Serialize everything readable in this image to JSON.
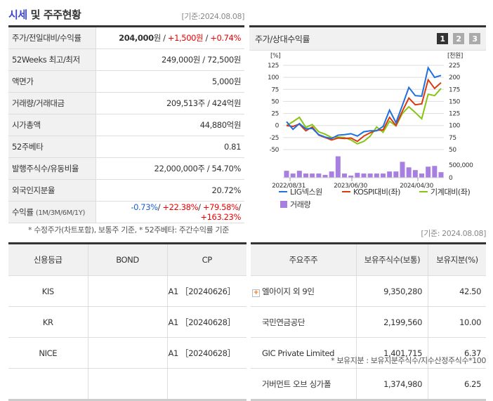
{
  "header": {
    "title_highlight": "시세",
    "title_rest": " 및 주주현황",
    "date": "[기준:2024.08.08]"
  },
  "summary": [
    {
      "label": "주가/전일대비/수익률",
      "price": "204,000",
      "unit": "원",
      "change": "+1,500원",
      "rate": "+0.74%"
    },
    {
      "label": "52Weeks 최고/최저",
      "value": "249,000원 / 72,500원"
    },
    {
      "label": "액면가",
      "value": "5,000원"
    },
    {
      "label": "거래량/거래대금",
      "value": "209,513주 / 424억원"
    },
    {
      "label": "시가총액",
      "value": "44,880억원"
    },
    {
      "label": "52주베타",
      "value": "0.81"
    },
    {
      "label": "발행주식수/유동비율",
      "value": "22,000,000주 / 54.70%"
    },
    {
      "label": "외국인지분율",
      "value": "20.72%"
    },
    {
      "label": "수익률",
      "sub": "(1M/3M/6M/1Y)",
      "r1": "-0.73%",
      "r2": "+22.38%",
      "r3": "+79.58%",
      "r4": "+163.23%"
    }
  ],
  "summary_note": "* 수정주가(차트포함), 보통주 기준, * 52주베타: 주간수익률 기준",
  "chart_panel": {
    "title": "주가/상대수익률",
    "pages": [
      "1",
      "2",
      "3"
    ]
  },
  "chart_data": {
    "type": "line",
    "left_unit": "[%]",
    "right_unit": "[천원]",
    "left_ticks": [
      125,
      100,
      75,
      50,
      25,
      0,
      -25,
      -50
    ],
    "right_ticks": [
      225,
      200,
      175,
      150,
      125,
      100,
      75,
      50
    ],
    "ylim": [
      -50,
      125
    ],
    "volume_tick": "500,000",
    "volume_zero": "0",
    "x_labels": [
      "2022/08/31",
      "2023/06/30",
      "2024/04/30"
    ],
    "series": [
      {
        "name": "LIG넥스원",
        "color": "#1f6fdf",
        "values": [
          8,
          -8,
          4,
          -7,
          -6,
          -19,
          -24,
          -27,
          -20,
          -19,
          -17,
          -22,
          -13,
          -11,
          -11,
          -2,
          32,
          6,
          42,
          79,
          62,
          61,
          120,
          100,
          104
        ]
      },
      {
        "name": "KOSPI대비(좌)",
        "color": "#d83a10",
        "values": [
          0,
          -2,
          3,
          -11,
          -3,
          -20,
          -25,
          -30,
          -26,
          -27,
          -26,
          -33,
          -22,
          -15,
          -10,
          -9,
          17,
          0,
          30,
          57,
          43,
          45,
          95,
          77,
          89
        ]
      },
      {
        "name": "기계대비(좌)",
        "color": "#88c414",
        "values": [
          0,
          8,
          17,
          -4,
          2,
          -13,
          -18,
          -25,
          -24,
          -25,
          -30,
          -38,
          -33,
          -22,
          -3,
          -14,
          9,
          -1,
          25,
          39,
          27,
          14,
          65,
          62,
          77
        ]
      }
    ],
    "volume": {
      "name": "거래량",
      "color": "#a77fe0",
      "values": [
        273000,
        164000,
        273000,
        164000,
        164000,
        164000,
        109000,
        245000,
        845000,
        164000,
        82000,
        191000,
        164000,
        164000,
        164000,
        164000,
        245000,
        245000,
        627000,
        409000,
        300000,
        164000,
        436000,
        464000,
        218000
      ]
    }
  },
  "credit": {
    "headers": [
      "신용등급",
      "BOND",
      "CP"
    ],
    "rows": [
      [
        "KIS",
        "",
        "A1 ［20240626］"
      ],
      [
        "KR",
        "",
        "A1 ［20240628］"
      ],
      [
        "NICE",
        "",
        "A1 ［20240628］"
      ],
      [
        "",
        "",
        ""
      ]
    ]
  },
  "holders": {
    "date": "[기준: 2024.08.08]",
    "headers": [
      "주요주주",
      "보유주식수(보통)",
      "보유지분(%)"
    ],
    "rows": [
      [
        "엘아이지 외 9인",
        "9,350,280",
        "42.50"
      ],
      [
        "국민연금공단",
        "2,199,560",
        "10.00"
      ],
      [
        "GIC Private Limited",
        "1,401,715",
        "6.37"
      ],
      [
        "거버먼트 오브 싱가폴",
        "1,374,980",
        "6.25"
      ]
    ],
    "note": "* 보유지분 : 보유지분주식수/지수산정주식수*100"
  }
}
